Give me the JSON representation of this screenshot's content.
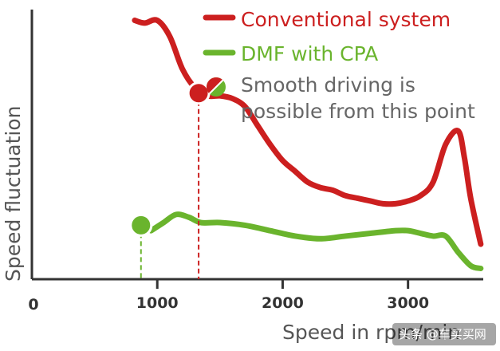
{
  "chart_data": {
    "type": "line",
    "ylabel": "Speed fluctuation",
    "xlabel": "Speed in rpm/min",
    "xlim": [
      0,
      3600
    ],
    "x_ticks": [
      0,
      1000,
      2000,
      3000
    ],
    "x_tick_labels": [
      "0",
      "1000",
      "2000",
      "3000"
    ],
    "y_ticks_shown": false,
    "series": [
      {
        "name": "Conventional system",
        "color": "#cc1f1f",
        "points": [
          [
            820,
            0.96
          ],
          [
            900,
            0.95
          ],
          [
            1000,
            0.96
          ],
          [
            1100,
            0.9
          ],
          [
            1200,
            0.78
          ],
          [
            1300,
            0.71
          ],
          [
            1400,
            0.68
          ],
          [
            1500,
            0.68
          ],
          [
            1600,
            0.67
          ],
          [
            1700,
            0.64
          ],
          [
            1800,
            0.57
          ],
          [
            1900,
            0.5
          ],
          [
            2000,
            0.44
          ],
          [
            2100,
            0.4
          ],
          [
            2200,
            0.36
          ],
          [
            2300,
            0.34
          ],
          [
            2400,
            0.33
          ],
          [
            2500,
            0.31
          ],
          [
            2600,
            0.3
          ],
          [
            2700,
            0.29
          ],
          [
            2800,
            0.28
          ],
          [
            2900,
            0.28
          ],
          [
            3000,
            0.29
          ],
          [
            3100,
            0.31
          ],
          [
            3200,
            0.36
          ],
          [
            3300,
            0.5
          ],
          [
            3400,
            0.55
          ],
          [
            3450,
            0.45
          ],
          [
            3500,
            0.3
          ],
          [
            3580,
            0.13
          ]
        ]
      },
      {
        "name": "DMF with CPA",
        "color": "#6ab42d",
        "points": [
          [
            950,
            0.18
          ],
          [
            1050,
            0.21
          ],
          [
            1150,
            0.24
          ],
          [
            1250,
            0.23
          ],
          [
            1350,
            0.21
          ],
          [
            1500,
            0.21
          ],
          [
            1700,
            0.2
          ],
          [
            1900,
            0.18
          ],
          [
            2100,
            0.16
          ],
          [
            2300,
            0.15
          ],
          [
            2500,
            0.16
          ],
          [
            2700,
            0.17
          ],
          [
            2900,
            0.18
          ],
          [
            3000,
            0.18
          ],
          [
            3100,
            0.17
          ],
          [
            3200,
            0.16
          ],
          [
            3300,
            0.16
          ],
          [
            3400,
            0.1
          ],
          [
            3500,
            0.05
          ],
          [
            3580,
            0.04
          ]
        ]
      }
    ],
    "markers": [
      {
        "x": 1330,
        "y": 0.69,
        "color": "#cc1f1f"
      },
      {
        "x": 870,
        "y": 0.2,
        "color": "#6ab42d"
      }
    ],
    "legend": {
      "position": "top-right",
      "entries": [
        {
          "label": "Conventional system",
          "color": "#cc1f1f"
        },
        {
          "label": "DMF with CPA",
          "color": "#6ab42d"
        }
      ],
      "annotation_line1": "Smooth driving is",
      "annotation_line2": "possible from this point"
    },
    "watermark": "头条 @车买买网"
  }
}
